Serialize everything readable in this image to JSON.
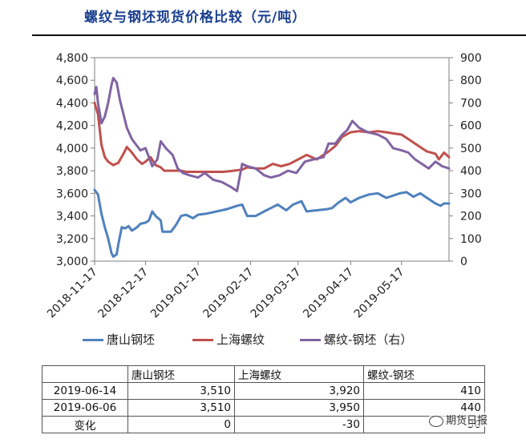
{
  "title": "螺纹与钢坯现货价格比较（元/吨）",
  "chart_data": {
    "type": "line",
    "xlim": [
      "2018-11-17",
      "2019-06-14"
    ],
    "ylim_left": [
      3000,
      4800
    ],
    "ylim_right": [
      0,
      900
    ],
    "left_ticks": [
      3000,
      3200,
      3400,
      3600,
      3800,
      4000,
      4200,
      4400,
      4600,
      4800
    ],
    "left_tick_labels": [
      "3,000",
      "3,200",
      "3,400",
      "3,600",
      "3,800",
      "4,000",
      "4,200",
      "4,400",
      "4,600",
      "4,800"
    ],
    "right_ticks": [
      0,
      100,
      200,
      300,
      400,
      500,
      600,
      700,
      800,
      900
    ],
    "right_tick_labels": [
      "0",
      "100",
      "200",
      "300",
      "400",
      "500",
      "600",
      "700",
      "800",
      "900"
    ],
    "x_ticks": [
      "2018-11-17",
      "2018-12-17",
      "2019-01-17",
      "2019-02-17",
      "2019-03-17",
      "2019-04-17",
      "2019-05-17"
    ],
    "grid": false,
    "legend_position": "bottom",
    "series": [
      {
        "name": "唐山钢坯",
        "axis": "left",
        "color": "#4f81bd",
        "points": [
          [
            "2018-11-17",
            3630
          ],
          [
            "2018-11-19",
            3590
          ],
          [
            "2018-11-21",
            3420
          ],
          [
            "2018-11-23",
            3300
          ],
          [
            "2018-11-25",
            3200
          ],
          [
            "2018-11-27",
            3070
          ],
          [
            "2018-11-28",
            3040
          ],
          [
            "2018-11-30",
            3060
          ],
          [
            "2018-12-01",
            3150
          ],
          [
            "2018-12-03",
            3300
          ],
          [
            "2018-12-05",
            3290
          ],
          [
            "2018-12-07",
            3310
          ],
          [
            "2018-12-09",
            3270
          ],
          [
            "2018-12-12",
            3300
          ],
          [
            "2018-12-14",
            3330
          ],
          [
            "2018-12-17",
            3340
          ],
          [
            "2018-12-19",
            3360
          ],
          [
            "2018-12-21",
            3440
          ],
          [
            "2018-12-23",
            3400
          ],
          [
            "2018-12-26",
            3360
          ],
          [
            "2018-12-27",
            3260
          ],
          [
            "2019-01-01",
            3260
          ],
          [
            "2019-01-04",
            3320
          ],
          [
            "2019-01-07",
            3400
          ],
          [
            "2019-01-10",
            3410
          ],
          [
            "2019-01-14",
            3380
          ],
          [
            "2019-01-17",
            3410
          ],
          [
            "2019-01-22",
            3420
          ],
          [
            "2019-01-28",
            3440
          ],
          [
            "2019-02-03",
            3460
          ],
          [
            "2019-02-09",
            3490
          ],
          [
            "2019-02-12",
            3500
          ],
          [
            "2019-02-15",
            3400
          ],
          [
            "2019-02-20",
            3400
          ],
          [
            "2019-02-25",
            3440
          ],
          [
            "2019-03-01",
            3470
          ],
          [
            "2019-03-05",
            3500
          ],
          [
            "2019-03-10",
            3450
          ],
          [
            "2019-03-14",
            3500
          ],
          [
            "2019-03-19",
            3530
          ],
          [
            "2019-03-22",
            3440
          ],
          [
            "2019-03-28",
            3450
          ],
          [
            "2019-04-03",
            3460
          ],
          [
            "2019-04-06",
            3470
          ],
          [
            "2019-04-10",
            3520
          ],
          [
            "2019-04-14",
            3560
          ],
          [
            "2019-04-17",
            3520
          ],
          [
            "2019-04-22",
            3560
          ],
          [
            "2019-04-28",
            3590
          ],
          [
            "2019-05-03",
            3600
          ],
          [
            "2019-05-08",
            3560
          ],
          [
            "2019-05-12",
            3580
          ],
          [
            "2019-05-16",
            3600
          ],
          [
            "2019-05-20",
            3610
          ],
          [
            "2019-05-24",
            3570
          ],
          [
            "2019-05-28",
            3600
          ],
          [
            "2019-06-01",
            3560
          ],
          [
            "2019-06-04",
            3530
          ],
          [
            "2019-06-06",
            3510
          ],
          [
            "2019-06-09",
            3490
          ],
          [
            "2019-06-11",
            3510
          ],
          [
            "2019-06-14",
            3510
          ]
        ]
      },
      {
        "name": "上海螺纹",
        "axis": "left",
        "color": "#c0504d",
        "points": [
          [
            "2018-11-17",
            4400
          ],
          [
            "2018-11-19",
            4300
          ],
          [
            "2018-11-21",
            4030
          ],
          [
            "2018-11-23",
            3920
          ],
          [
            "2018-11-25",
            3880
          ],
          [
            "2018-11-28",
            3850
          ],
          [
            "2018-12-01",
            3870
          ],
          [
            "2018-12-04",
            3950
          ],
          [
            "2018-12-06",
            4010
          ],
          [
            "2018-12-09",
            3960
          ],
          [
            "2018-12-12",
            3900
          ],
          [
            "2018-12-15",
            3860
          ],
          [
            "2018-12-17",
            3880
          ],
          [
            "2018-12-20",
            3920
          ],
          [
            "2018-12-23",
            3850
          ],
          [
            "2018-12-26",
            3830
          ],
          [
            "2018-12-28",
            3800
          ],
          [
            "2019-01-03",
            3800
          ],
          [
            "2019-01-07",
            3800
          ],
          [
            "2019-01-10",
            3790
          ],
          [
            "2019-01-17",
            3790
          ],
          [
            "2019-01-25",
            3790
          ],
          [
            "2019-02-01",
            3790
          ],
          [
            "2019-02-07",
            3800
          ],
          [
            "2019-02-12",
            3810
          ],
          [
            "2019-02-15",
            3830
          ],
          [
            "2019-02-20",
            3820
          ],
          [
            "2019-02-25",
            3820
          ],
          [
            "2019-03-02",
            3860
          ],
          [
            "2019-03-07",
            3840
          ],
          [
            "2019-03-12",
            3860
          ],
          [
            "2019-03-17",
            3900
          ],
          [
            "2019-03-22",
            3940
          ],
          [
            "2019-03-28",
            3900
          ],
          [
            "2019-04-04",
            3970
          ],
          [
            "2019-04-08",
            4020
          ],
          [
            "2019-04-12",
            4100
          ],
          [
            "2019-04-17",
            4140
          ],
          [
            "2019-04-22",
            4150
          ],
          [
            "2019-04-28",
            4140
          ],
          [
            "2019-05-03",
            4150
          ],
          [
            "2019-05-08",
            4140
          ],
          [
            "2019-05-12",
            4130
          ],
          [
            "2019-05-17",
            4120
          ],
          [
            "2019-05-22",
            4070
          ],
          [
            "2019-05-27",
            4020
          ],
          [
            "2019-06-01",
            3970
          ],
          [
            "2019-06-06",
            3950
          ],
          [
            "2019-06-08",
            3900
          ],
          [
            "2019-06-11",
            3960
          ],
          [
            "2019-06-14",
            3920
          ]
        ]
      },
      {
        "name": "螺纹-钢坯（右）",
        "axis": "right",
        "color": "#8064a2",
        "points": [
          [
            "2018-11-17",
            740
          ],
          [
            "2018-11-18",
            770
          ],
          [
            "2018-11-19",
            700
          ],
          [
            "2018-11-21",
            610
          ],
          [
            "2018-11-23",
            640
          ],
          [
            "2018-11-25",
            700
          ],
          [
            "2018-11-27",
            780
          ],
          [
            "2018-11-28",
            810
          ],
          [
            "2018-11-30",
            790
          ],
          [
            "2018-12-02",
            710
          ],
          [
            "2018-12-04",
            650
          ],
          [
            "2018-12-06",
            590
          ],
          [
            "2018-12-09",
            540
          ],
          [
            "2018-12-12",
            510
          ],
          [
            "2018-12-14",
            490
          ],
          [
            "2018-12-17",
            500
          ],
          [
            "2018-12-19",
            460
          ],
          [
            "2018-12-21",
            420
          ],
          [
            "2018-12-24",
            450
          ],
          [
            "2018-12-26",
            530
          ],
          [
            "2018-12-29",
            500
          ],
          [
            "2019-01-02",
            470
          ],
          [
            "2019-01-05",
            410
          ],
          [
            "2019-01-08",
            390
          ],
          [
            "2019-01-12",
            380
          ],
          [
            "2019-01-17",
            370
          ],
          [
            "2019-01-21",
            390
          ],
          [
            "2019-01-26",
            360
          ],
          [
            "2019-01-31",
            350
          ],
          [
            "2019-02-05",
            330
          ],
          [
            "2019-02-09",
            310
          ],
          [
            "2019-02-12",
            430
          ],
          [
            "2019-02-15",
            420
          ],
          [
            "2019-02-20",
            410
          ],
          [
            "2019-02-25",
            380
          ],
          [
            "2019-03-01",
            370
          ],
          [
            "2019-03-06",
            380
          ],
          [
            "2019-03-11",
            400
          ],
          [
            "2019-03-16",
            390
          ],
          [
            "2019-03-21",
            440
          ],
          [
            "2019-03-26",
            450
          ],
          [
            "2019-04-01",
            460
          ],
          [
            "2019-04-04",
            520
          ],
          [
            "2019-04-08",
            520
          ],
          [
            "2019-04-12",
            560
          ],
          [
            "2019-04-15",
            580
          ],
          [
            "2019-04-18",
            620
          ],
          [
            "2019-04-22",
            590
          ],
          [
            "2019-04-27",
            570
          ],
          [
            "2019-05-03",
            560
          ],
          [
            "2019-05-08",
            540
          ],
          [
            "2019-05-12",
            500
          ],
          [
            "2019-05-17",
            490
          ],
          [
            "2019-05-21",
            480
          ],
          [
            "2019-05-25",
            450
          ],
          [
            "2019-05-29",
            430
          ],
          [
            "2019-06-02",
            410
          ],
          [
            "2019-06-06",
            440
          ],
          [
            "2019-06-10",
            420
          ],
          [
            "2019-06-14",
            410
          ]
        ]
      }
    ]
  },
  "legend": [
    {
      "label": "唐山钢坯",
      "color": "#4f81bd"
    },
    {
      "label": "上海螺纹",
      "color": "#c0504d"
    },
    {
      "label": "螺纹-钢坯（右）",
      "color": "#8064a2"
    }
  ],
  "table": {
    "headers": [
      "",
      "唐山钢坯",
      "上海螺纹",
      "螺纹-钢坯"
    ],
    "rows": [
      [
        "2019-06-14",
        "3,510",
        "3,920",
        "410"
      ],
      [
        "2019-06-06",
        "3,510",
        "3,950",
        "440"
      ],
      [
        "变化",
        "0",
        "-30",
        "-30"
      ]
    ]
  },
  "watermark": "期货日报"
}
